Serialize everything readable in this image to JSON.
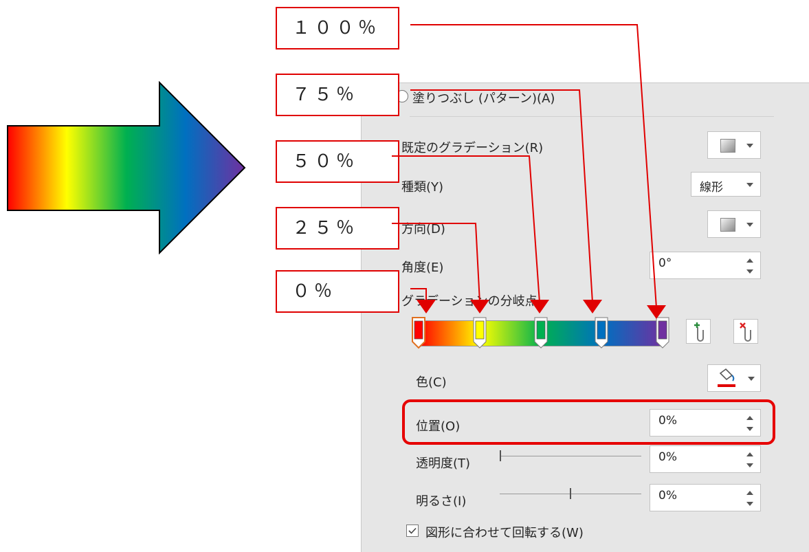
{
  "panel": {
    "pattern_fill_label": "塗りつぶし (パターン)(A)",
    "preset_label": "既定のグラデーション(R)",
    "type_label": "種類(Y)",
    "type_value": "線形",
    "direction_label": "方向(D)",
    "angle_label": "角度(E)",
    "angle_value": "0°",
    "stops_label": "グラデーションの分岐点",
    "color_label": "色(C)",
    "position_label": "位置(O)",
    "position_value": "0%",
    "transparency_label": "透明度(T)",
    "transparency_value": "0%",
    "brightness_label": "明るさ(I)",
    "brightness_value": "0%",
    "rotate_label": "図形に合わせて回転する(W)",
    "rotate_checked": true
  },
  "gradient_stops": [
    {
      "color": "#ff0000",
      "position": 0
    },
    {
      "color": "#ffff00",
      "position": 25
    },
    {
      "color": "#00b050",
      "position": 50
    },
    {
      "color": "#0070c0",
      "position": 75
    },
    {
      "color": "#7030a0",
      "position": 100
    }
  ],
  "callouts": [
    "１００％",
    "７５％",
    "５０％",
    "２５％",
    "０％"
  ],
  "colors": {
    "accent": "#e00000",
    "panel_bg": "#e6e6e6"
  },
  "icons": [
    "gradient-preset-icon",
    "direction-icon",
    "add-stop-icon",
    "remove-stop-icon",
    "paint-bucket-icon",
    "checkbox-icon"
  ]
}
